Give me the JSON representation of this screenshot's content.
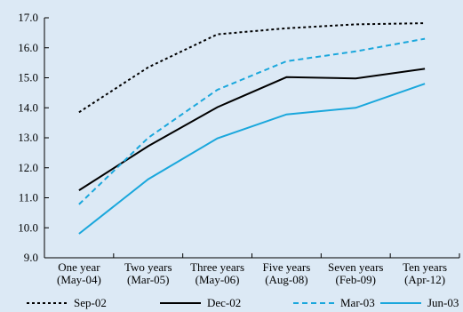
{
  "chart_data": {
    "type": "line",
    "categories": [
      [
        "One year",
        "(May-04)"
      ],
      [
        "Two years",
        "(Mar-05)"
      ],
      [
        "Three years",
        "(May-06)"
      ],
      [
        "Five years",
        "(Aug-08)"
      ],
      [
        "Seven years",
        "(Feb-09)"
      ],
      [
        "Ten years",
        "(Apr-12)"
      ]
    ],
    "ylim": [
      9.0,
      17.0
    ],
    "yticks": [
      "9.0",
      "10.0",
      "11.0",
      "12.0",
      "13.0",
      "14.0",
      "15.0",
      "16.0",
      "17.0"
    ],
    "grid": false,
    "legend_position": "bottom",
    "series": [
      {
        "name": "Sep-02",
        "values": [
          13.85,
          15.35,
          16.45,
          16.65,
          16.78,
          16.82
        ],
        "color": "#000000",
        "style": "dotted"
      },
      {
        "name": "Dec-02",
        "values": [
          11.25,
          12.72,
          14.02,
          15.02,
          14.98,
          15.3
        ],
        "color": "#000000",
        "style": "solid"
      },
      {
        "name": "Mar-03",
        "values": [
          10.78,
          13.0,
          14.6,
          15.55,
          15.88,
          16.3
        ],
        "color": "#1aa7dc",
        "style": "dashed"
      },
      {
        "name": "Jun-03",
        "values": [
          9.8,
          11.62,
          12.98,
          13.78,
          14.0,
          14.8
        ],
        "color": "#1aa7dc",
        "style": "solid"
      }
    ]
  }
}
